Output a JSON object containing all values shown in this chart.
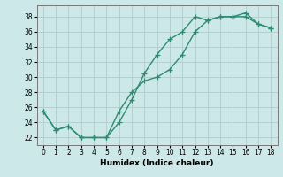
{
  "xlabel": "Humidex (Indice chaleur)",
  "line1_x": [
    0,
    1,
    2,
    3,
    4,
    5,
    6,
    7,
    8,
    9,
    10,
    11,
    12,
    13,
    14,
    15,
    16,
    17,
    18
  ],
  "line1_y": [
    25.5,
    23.0,
    23.5,
    22.0,
    22.0,
    22.0,
    24.0,
    27.0,
    30.5,
    33.0,
    35.0,
    36.0,
    38.0,
    37.5,
    38.0,
    38.0,
    38.0,
    37.0,
    36.5
  ],
  "line2_x": [
    0,
    1,
    2,
    3,
    4,
    5,
    6,
    7,
    8,
    9,
    10,
    11,
    12,
    13,
    14,
    15,
    16,
    17,
    18
  ],
  "line2_y": [
    25.5,
    23.0,
    23.5,
    22.0,
    22.0,
    22.0,
    25.5,
    28.0,
    29.5,
    30.0,
    31.0,
    33.0,
    36.0,
    37.5,
    38.0,
    38.0,
    38.5,
    37.0,
    36.5
  ],
  "line_color": "#2e8b73",
  "bg_color": "#cce8e8",
  "grid_color": "#b0cccc",
  "xlim": [
    -0.5,
    18.5
  ],
  "ylim": [
    21.0,
    39.5
  ],
  "yticks": [
    22,
    24,
    26,
    28,
    30,
    32,
    34,
    36,
    38
  ],
  "xticks": [
    0,
    1,
    2,
    3,
    4,
    5,
    6,
    7,
    8,
    9,
    10,
    11,
    12,
    13,
    14,
    15,
    16,
    17,
    18
  ],
  "marker": "+",
  "marker_size": 4,
  "linewidth": 1.0,
  "tick_fontsize": 5.5,
  "xlabel_fontsize": 6.5
}
